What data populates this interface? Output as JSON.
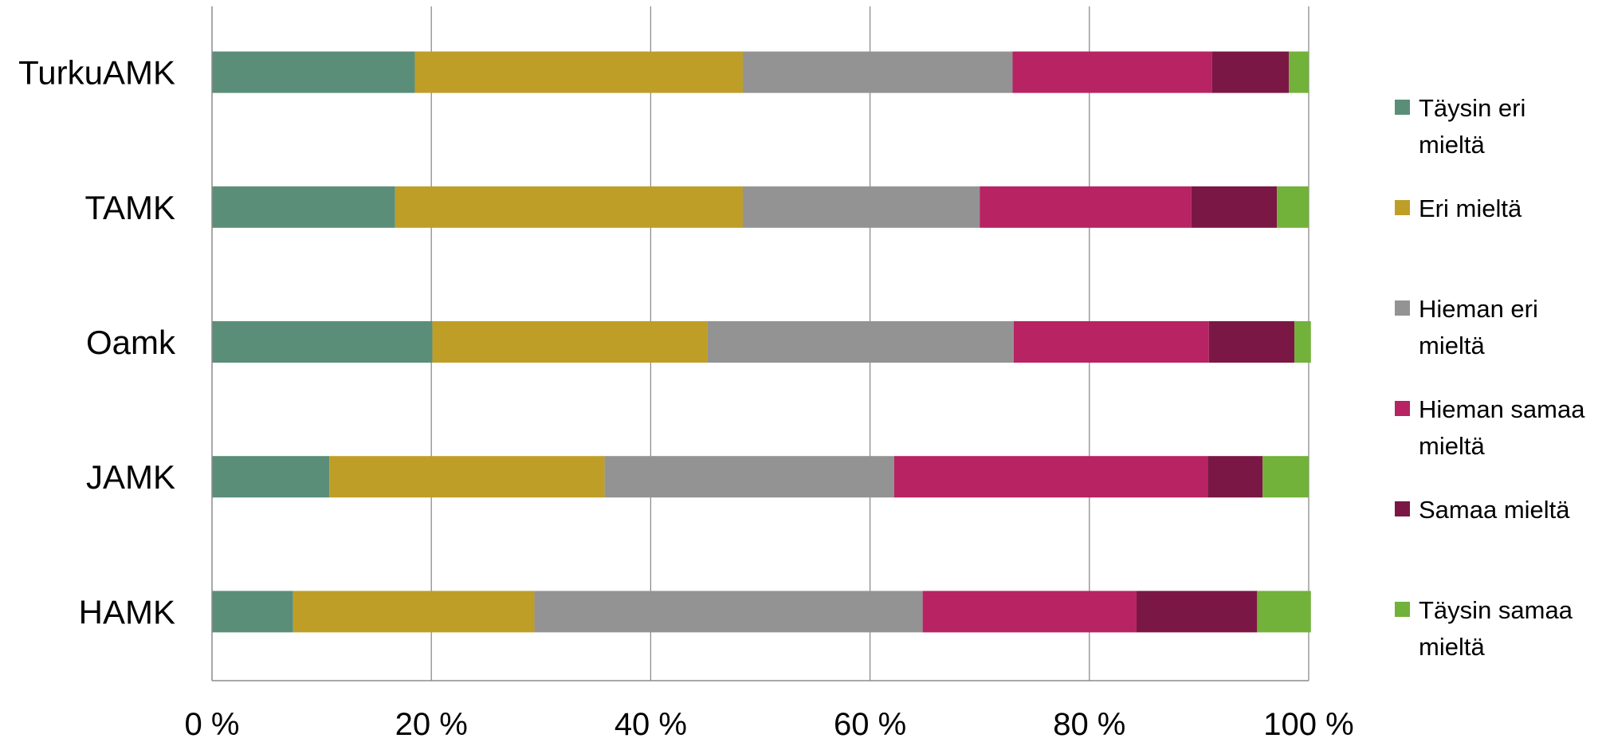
{
  "chart_data": {
    "type": "bar",
    "orientation": "horizontal",
    "stacked": "percent",
    "title": "",
    "xlabel": "",
    "ylabel": "",
    "xlim": [
      0,
      100
    ],
    "x_ticks": [
      "0 %",
      "20 %",
      "40 %",
      "60 %",
      "80 %",
      "100 %"
    ],
    "grid": true,
    "legend_position": "right",
    "categories": [
      "TurkuAMK",
      "TAMK",
      "Oamk",
      "JAMK",
      "HAMK"
    ],
    "series": [
      {
        "name": "Täysin eri mieltä",
        "name_lines": [
          "Täysin eri",
          "mieltä"
        ],
        "color": "#5A8E78",
        "values": [
          18.5,
          16.7,
          20.1,
          10.7,
          7.4
        ]
      },
      {
        "name": "Eri mieltä",
        "name_lines": [
          "Eri mieltä"
        ],
        "color": "#BF9E27",
        "values": [
          29.9,
          31.7,
          25.1,
          25.1,
          22.0
        ]
      },
      {
        "name": "Hieman eri mieltä",
        "name_lines": [
          "Hieman eri",
          "mieltä"
        ],
        "color": "#939393",
        "values": [
          24.6,
          21.6,
          27.9,
          26.4,
          35.4
        ]
      },
      {
        "name": "Hieman samaa mieltä",
        "name_lines": [
          "Hieman samaa",
          "mieltä"
        ],
        "color": "#B72363",
        "values": [
          18.2,
          19.3,
          17.8,
          28.6,
          19.5
        ]
      },
      {
        "name": "Samaa mieltä",
        "name_lines": [
          "Samaa mieltä"
        ],
        "color": "#7B1744",
        "values": [
          7.0,
          7.8,
          7.8,
          5.0,
          11.0
        ]
      },
      {
        "name": "Täysin samaa mieltä",
        "name_lines": [
          "Täysin samaa",
          "mieltä"
        ],
        "color": "#72B13A",
        "values": [
          1.8,
          2.9,
          1.5,
          4.2,
          4.9
        ]
      }
    ]
  }
}
